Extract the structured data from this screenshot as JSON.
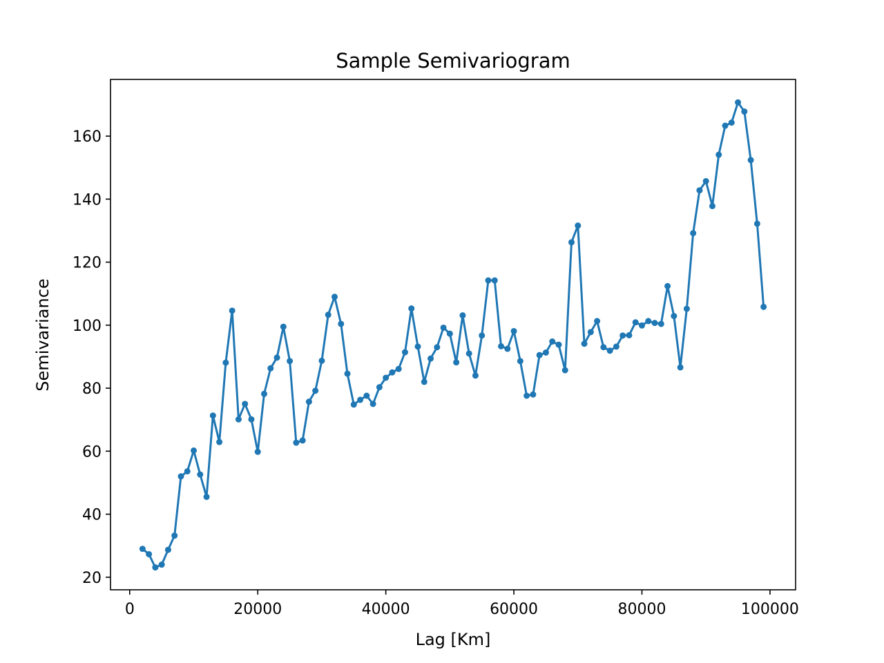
{
  "chart_data": {
    "type": "line",
    "title": "Sample Semivariogram",
    "xlabel": "Lag [Km]",
    "ylabel": "Semivariance",
    "xlim": [
      -3000,
      104000
    ],
    "ylim": [
      16,
      178
    ],
    "xticks": [
      0,
      20000,
      40000,
      60000,
      80000,
      100000
    ],
    "yticks": [
      20,
      40,
      60,
      80,
      100,
      120,
      140,
      160
    ],
    "grid": false,
    "colors": {
      "series": "#1f77b4"
    },
    "series": [
      {
        "marker": "circle",
        "x": [
          2000,
          3000,
          4000,
          5000,
          6000,
          7000,
          8000,
          9000,
          10000,
          11000,
          12000,
          13000,
          14000,
          15000,
          16000,
          17000,
          18000,
          19000,
          20000,
          21000,
          22000,
          23000,
          24000,
          25000,
          26000,
          27000,
          28000,
          29000,
          30000,
          31000,
          32000,
          33000,
          34000,
          35000,
          36000,
          37000,
          38000,
          39000,
          40000,
          41000,
          42000,
          43000,
          44000,
          45000,
          46000,
          47000,
          48000,
          49000,
          50000,
          51000,
          52000,
          53000,
          54000,
          55000,
          56000,
          57000,
          58000,
          59000,
          60000,
          61000,
          62000,
          63000,
          64000,
          65000,
          66000,
          67000,
          68000,
          69000,
          70000,
          71000,
          72000,
          73000,
          74000,
          75000,
          76000,
          77000,
          78000,
          79000,
          80000,
          81000,
          82000,
          83000,
          84000,
          85000,
          86000,
          87000,
          88000,
          89000,
          90000,
          91000,
          92000,
          93000,
          94000,
          95000,
          96000,
          97000,
          98000,
          99000
        ],
        "y": [
          29,
          27.3,
          23.1,
          24,
          28.7,
          33.2,
          52,
          53.6,
          60.2,
          52.6,
          45.5,
          71.3,
          62.9,
          88.1,
          104.6,
          70.1,
          75,
          70.1,
          59.8,
          78.2,
          86.3,
          89.7,
          99.5,
          88.6,
          62.7,
          63.4,
          75.7,
          79.2,
          88.7,
          103.3,
          109,
          100.4,
          84.6,
          74.8,
          76.3,
          77.6,
          75,
          80.3,
          83.3,
          85,
          86.1,
          91.4,
          105.3,
          93.2,
          82,
          89.4,
          93,
          99.2,
          97.3,
          88.2,
          103.1,
          91,
          84,
          96.7,
          114.2,
          114.2,
          93.3,
          92.5,
          98.1,
          88.6,
          77.6,
          78,
          90.5,
          91.3,
          94.8,
          93.8,
          85.7,
          126.3,
          131.6,
          94.1,
          97.8,
          101.3,
          93,
          91.9,
          93.2,
          96.7,
          96.8,
          100.9,
          99.9,
          101.3,
          100.7,
          100.4,
          112.4,
          102.9,
          86.6,
          105.2,
          129.2,
          142.8,
          145.7,
          137.8,
          154.1,
          163.3,
          164.3,
          170.7,
          167.8,
          152.4,
          132.2,
          105.8
        ]
      }
    ]
  }
}
